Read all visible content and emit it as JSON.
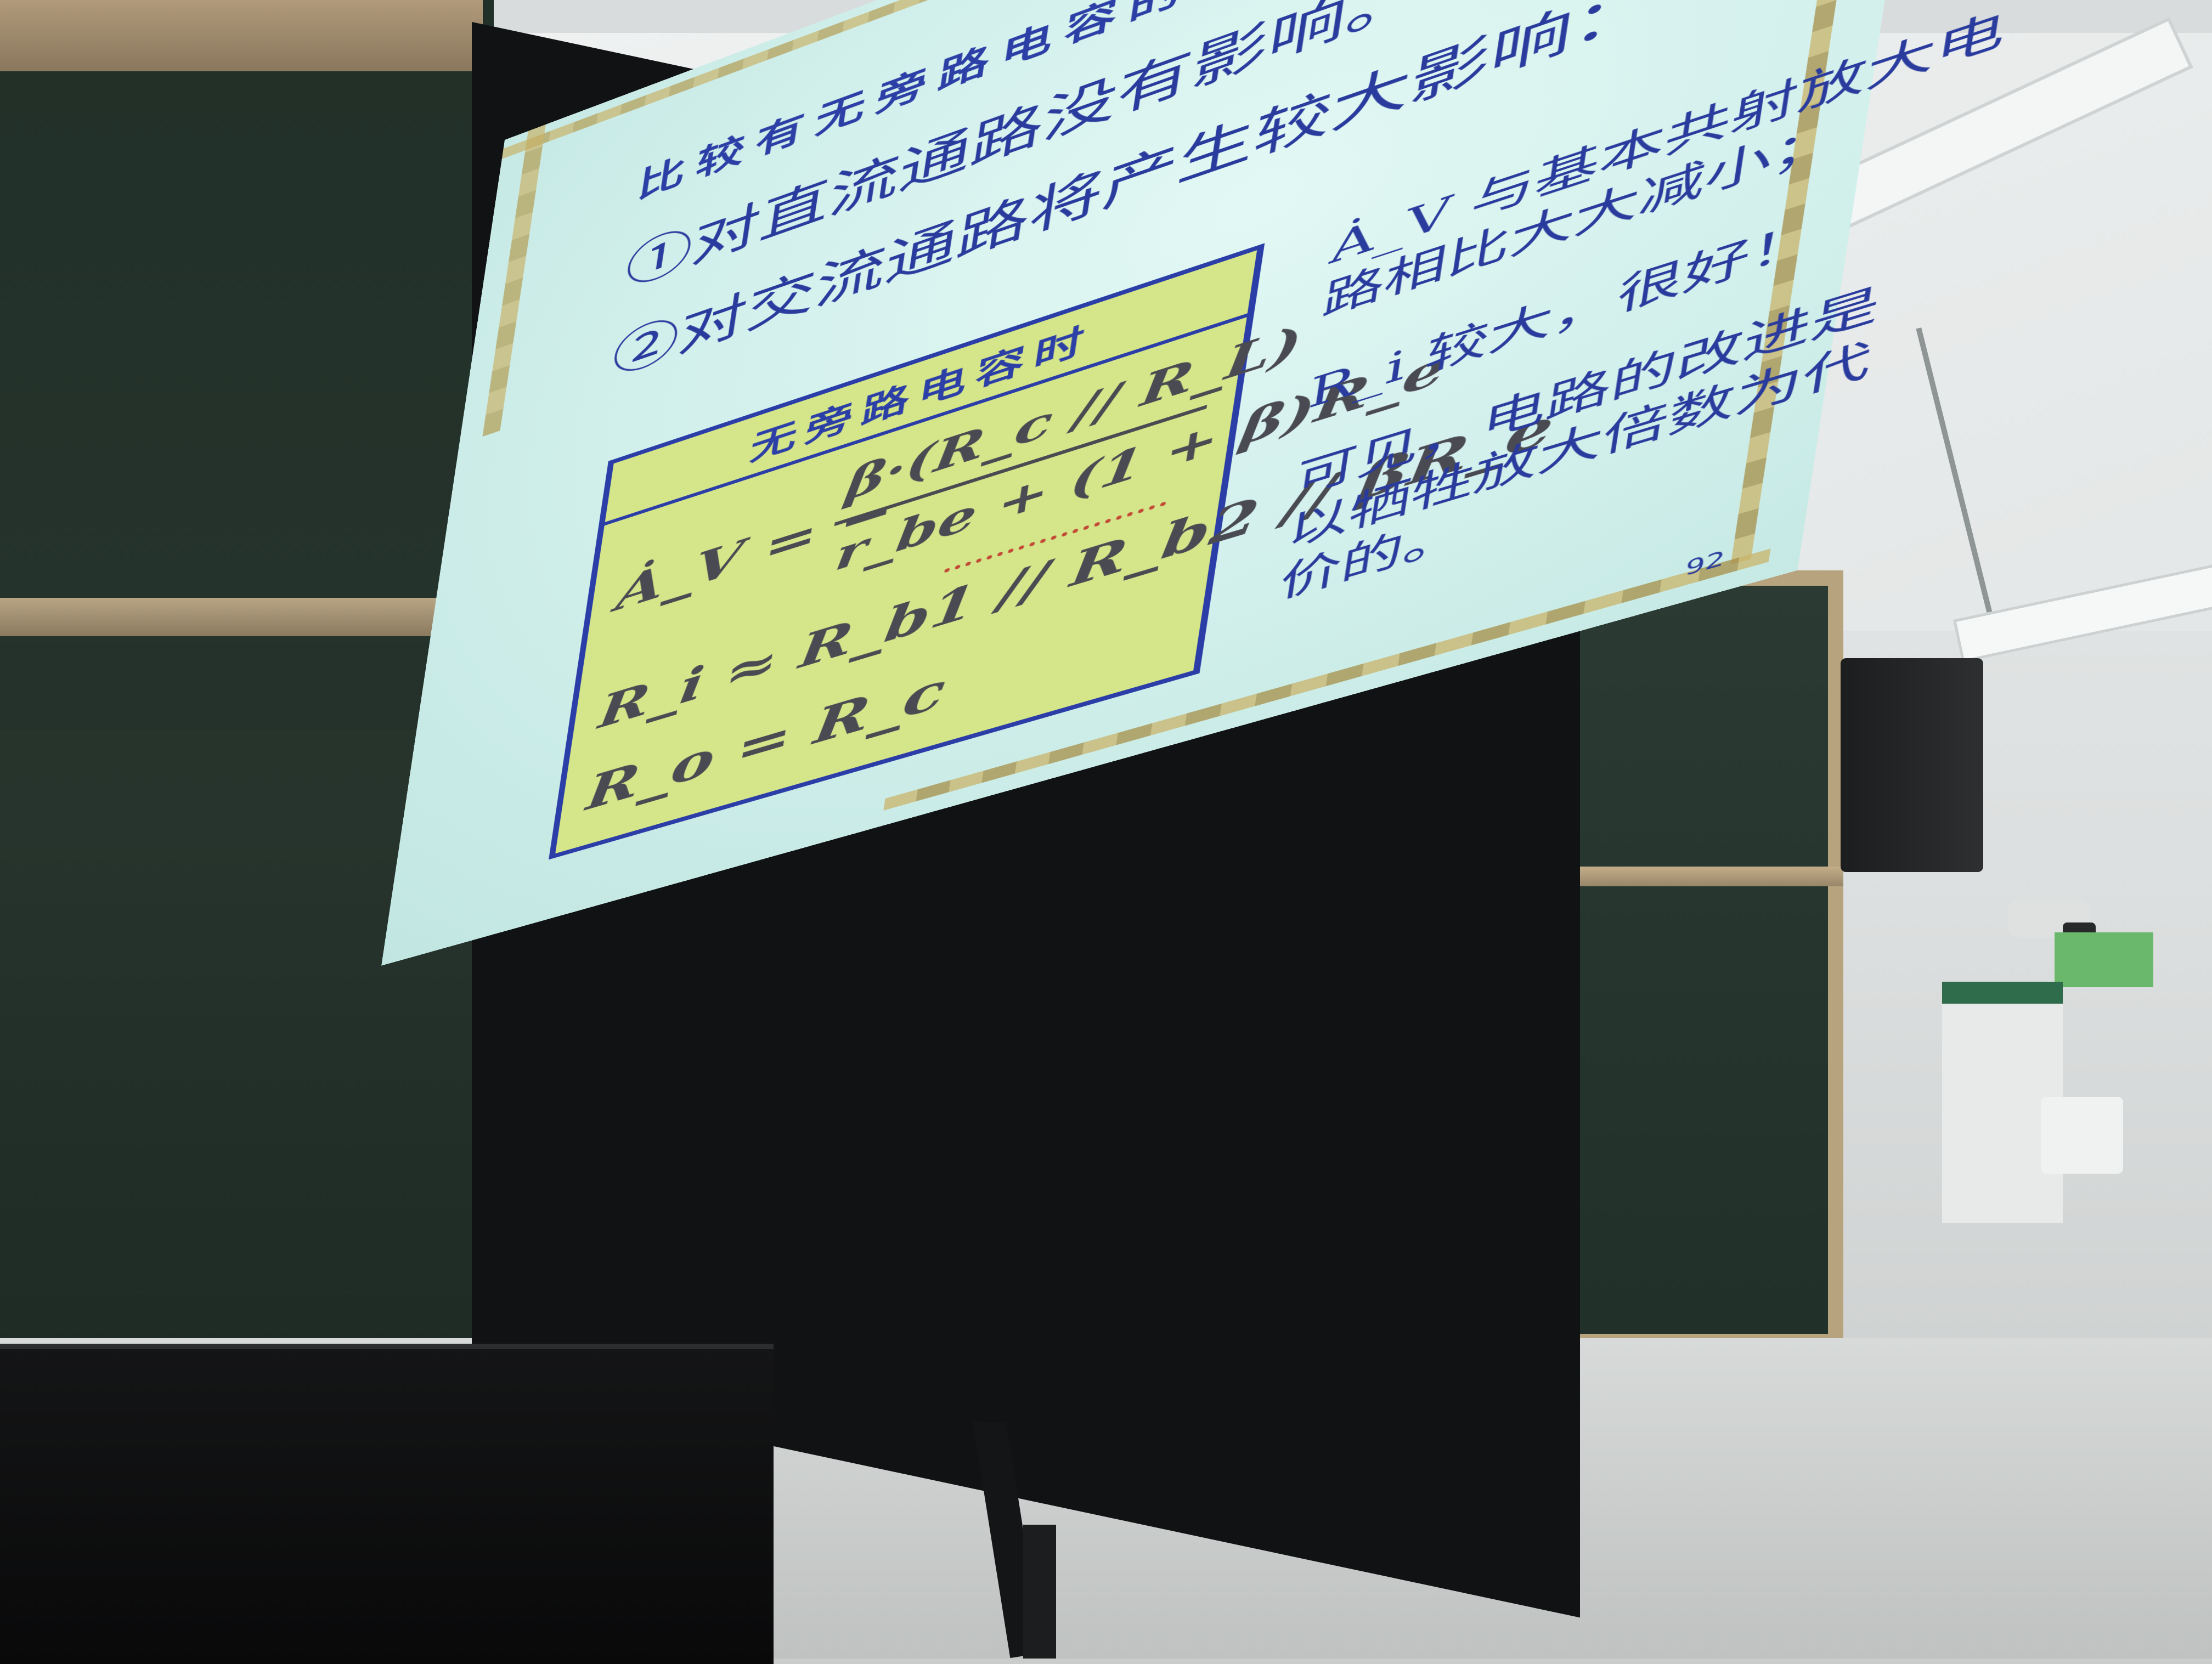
{
  "slide": {
    "title": "比较有无旁路电容的结果：",
    "line1": "①对直流通路没有影响。",
    "line2": "②对交流通路将产生较大影响：",
    "box_header": "无旁路电容时",
    "formula_av_lhs": "Ȧ_V = −",
    "formula_av_numerator": "β·(R_c // R_L)",
    "formula_av_denominator": "r_be + (1 + β)R_e",
    "formula_ri": "R_i ≈ R_b1 // R_b2 // βR_e",
    "formula_ro": "R_o = R_c",
    "note1_line1": "Ȧ_V 与基本共射放大电",
    "note1_line2": "路相比大大减小；",
    "note2": "R_i 较大，很好！",
    "note3_line1": "可见，电路的改进是",
    "note3_line2": "以牺牲放大倍数为代",
    "note3_line3": "价的。",
    "page_number": "92"
  },
  "colors": {
    "slide_bg": "#cfeeea",
    "text_blue": "#2a3b9e",
    "box_fill": "#d5e58a",
    "formula_text": "#4a4a52",
    "annotation_red": "#c24a36",
    "border_gold": "#c9b46a"
  }
}
